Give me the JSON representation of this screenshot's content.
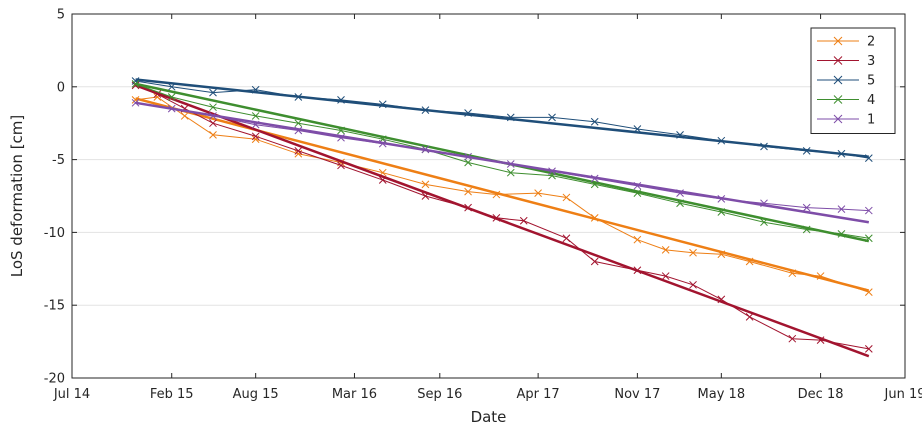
{
  "chart_data": {
    "type": "line",
    "title": "",
    "xlabel": "Date",
    "ylabel": "LoS deformation [cm]",
    "xlim": [
      "2014-07-01",
      "2019-06-01"
    ],
    "ylim": [
      -20,
      5
    ],
    "x_ticks": [
      {
        "date": "2014-07-01",
        "label": "Jul 14"
      },
      {
        "date": "2015-02-01",
        "label": "Feb 15"
      },
      {
        "date": "2015-08-01",
        "label": "Aug 15"
      },
      {
        "date": "2016-03-01",
        "label": "Mar 16"
      },
      {
        "date": "2016-09-01",
        "label": "Sep 16"
      },
      {
        "date": "2017-04-01",
        "label": "Apr 17"
      },
      {
        "date": "2017-11-01",
        "label": "Nov 17"
      },
      {
        "date": "2018-05-01",
        "label": "May 18"
      },
      {
        "date": "2018-12-01",
        "label": "Dec 18"
      },
      {
        "date": "2019-06-01",
        "label": "Jun 19"
      }
    ],
    "y_ticks": [
      5,
      0,
      -5,
      -10,
      -15,
      -20
    ],
    "grid": "horizontal",
    "legend": "top-right",
    "series": [
      {
        "name": "2",
        "color": "#EE7F15",
        "trend": [
          {
            "x": "2014-11-15",
            "y": -0.8
          },
          {
            "x": "2019-03-15",
            "y": -14.0
          }
        ],
        "points": [
          {
            "x": "2014-11-15",
            "y": -0.9
          },
          {
            "x": "2015-01-01",
            "y": -0.7
          },
          {
            "x": "2015-03-01",
            "y": -2.0
          },
          {
            "x": "2015-05-01",
            "y": -3.3
          },
          {
            "x": "2015-08-01",
            "y": -3.6
          },
          {
            "x": "2015-11-01",
            "y": -4.6
          },
          {
            "x": "2016-02-01",
            "y": -5.2
          },
          {
            "x": "2016-05-01",
            "y": -5.9
          },
          {
            "x": "2016-08-01",
            "y": -6.7
          },
          {
            "x": "2016-11-01",
            "y": -7.2
          },
          {
            "x": "2017-01-01",
            "y": -7.4
          },
          {
            "x": "2017-04-01",
            "y": -7.3
          },
          {
            "x": "2017-06-01",
            "y": -7.6
          },
          {
            "x": "2017-08-01",
            "y": -9.0
          },
          {
            "x": "2017-11-01",
            "y": -10.5
          },
          {
            "x": "2018-01-01",
            "y": -11.2
          },
          {
            "x": "2018-03-01",
            "y": -11.4
          },
          {
            "x": "2018-05-01",
            "y": -11.5
          },
          {
            "x": "2018-07-01",
            "y": -12.0
          },
          {
            "x": "2018-10-01",
            "y": -12.8
          },
          {
            "x": "2018-12-01",
            "y": -13.0
          },
          {
            "x": "2019-03-15",
            "y": -14.1
          }
        ]
      },
      {
        "name": "3",
        "color": "#A2142F",
        "trend": [
          {
            "x": "2014-11-15",
            "y": 0.1
          },
          {
            "x": "2019-03-15",
            "y": -18.5
          }
        ],
        "points": [
          {
            "x": "2014-11-15",
            "y": 0.1
          },
          {
            "x": "2015-01-01",
            "y": -0.5
          },
          {
            "x": "2015-03-01",
            "y": -1.5
          },
          {
            "x": "2015-05-01",
            "y": -2.5
          },
          {
            "x": "2015-08-01",
            "y": -3.4
          },
          {
            "x": "2015-11-01",
            "y": -4.4
          },
          {
            "x": "2016-02-01",
            "y": -5.4
          },
          {
            "x": "2016-05-01",
            "y": -6.4
          },
          {
            "x": "2016-08-01",
            "y": -7.5
          },
          {
            "x": "2016-11-01",
            "y": -8.3
          },
          {
            "x": "2017-01-01",
            "y": -9.0
          },
          {
            "x": "2017-03-01",
            "y": -9.2
          },
          {
            "x": "2017-06-01",
            "y": -10.4
          },
          {
            "x": "2017-08-01",
            "y": -12.0
          },
          {
            "x": "2017-11-01",
            "y": -12.6
          },
          {
            "x": "2018-01-01",
            "y": -13.0
          },
          {
            "x": "2018-03-01",
            "y": -13.6
          },
          {
            "x": "2018-05-01",
            "y": -14.6
          },
          {
            "x": "2018-07-01",
            "y": -15.8
          },
          {
            "x": "2018-10-01",
            "y": -17.3
          },
          {
            "x": "2018-12-01",
            "y": -17.4
          },
          {
            "x": "2019-03-15",
            "y": -18.0
          }
        ]
      },
      {
        "name": "5",
        "color": "#1F4E79",
        "trend": [
          {
            "x": "2014-11-15",
            "y": 0.5
          },
          {
            "x": "2019-03-15",
            "y": -4.8
          }
        ],
        "points": [
          {
            "x": "2014-11-15",
            "y": 0.4
          },
          {
            "x": "2015-02-01",
            "y": 0.0
          },
          {
            "x": "2015-05-01",
            "y": -0.4
          },
          {
            "x": "2015-08-01",
            "y": -0.2
          },
          {
            "x": "2015-11-01",
            "y": -0.7
          },
          {
            "x": "2016-02-01",
            "y": -0.9
          },
          {
            "x": "2016-05-01",
            "y": -1.2
          },
          {
            "x": "2016-08-01",
            "y": -1.6
          },
          {
            "x": "2016-11-01",
            "y": -1.8
          },
          {
            "x": "2017-02-01",
            "y": -2.1
          },
          {
            "x": "2017-05-01",
            "y": -2.1
          },
          {
            "x": "2017-08-01",
            "y": -2.4
          },
          {
            "x": "2017-11-01",
            "y": -2.9
          },
          {
            "x": "2018-02-01",
            "y": -3.3
          },
          {
            "x": "2018-05-01",
            "y": -3.7
          },
          {
            "x": "2018-08-01",
            "y": -4.1
          },
          {
            "x": "2018-11-01",
            "y": -4.4
          },
          {
            "x": "2019-01-15",
            "y": -4.6
          },
          {
            "x": "2019-03-15",
            "y": -4.9
          }
        ]
      },
      {
        "name": "4",
        "color": "#3E8E2F",
        "trend": [
          {
            "x": "2014-11-15",
            "y": 0.2
          },
          {
            "x": "2019-03-15",
            "y": -10.6
          }
        ],
        "points": [
          {
            "x": "2014-11-15",
            "y": 0.2
          },
          {
            "x": "2015-02-01",
            "y": -0.7
          },
          {
            "x": "2015-05-01",
            "y": -1.4
          },
          {
            "x": "2015-08-01",
            "y": -2.0
          },
          {
            "x": "2015-11-01",
            "y": -2.5
          },
          {
            "x": "2016-02-01",
            "y": -3.0
          },
          {
            "x": "2016-05-01",
            "y": -3.6
          },
          {
            "x": "2016-08-01",
            "y": -4.3
          },
          {
            "x": "2016-11-01",
            "y": -5.2
          },
          {
            "x": "2017-02-01",
            "y": -5.9
          },
          {
            "x": "2017-05-01",
            "y": -6.1
          },
          {
            "x": "2017-08-01",
            "y": -6.7
          },
          {
            "x": "2017-11-01",
            "y": -7.3
          },
          {
            "x": "2018-02-01",
            "y": -8.0
          },
          {
            "x": "2018-05-01",
            "y": -8.6
          },
          {
            "x": "2018-08-01",
            "y": -9.3
          },
          {
            "x": "2018-11-01",
            "y": -9.8
          },
          {
            "x": "2019-01-15",
            "y": -10.1
          },
          {
            "x": "2019-03-15",
            "y": -10.4
          }
        ]
      },
      {
        "name": "1",
        "color": "#7E4DA8",
        "trend": [
          {
            "x": "2014-11-15",
            "y": -1.1
          },
          {
            "x": "2019-03-15",
            "y": -9.3
          }
        ],
        "points": [
          {
            "x": "2014-11-15",
            "y": -1.1
          },
          {
            "x": "2015-02-01",
            "y": -1.5
          },
          {
            "x": "2015-05-01",
            "y": -2.0
          },
          {
            "x": "2015-08-01",
            "y": -2.6
          },
          {
            "x": "2015-11-01",
            "y": -3.0
          },
          {
            "x": "2016-02-01",
            "y": -3.5
          },
          {
            "x": "2016-05-01",
            "y": -3.9
          },
          {
            "x": "2016-08-01",
            "y": -4.3
          },
          {
            "x": "2016-11-01",
            "y": -4.8
          },
          {
            "x": "2017-02-01",
            "y": -5.3
          },
          {
            "x": "2017-05-01",
            "y": -5.8
          },
          {
            "x": "2017-08-01",
            "y": -6.3
          },
          {
            "x": "2017-11-01",
            "y": -6.8
          },
          {
            "x": "2018-02-01",
            "y": -7.3
          },
          {
            "x": "2018-05-01",
            "y": -7.7
          },
          {
            "x": "2018-08-01",
            "y": -8.0
          },
          {
            "x": "2018-11-01",
            "y": -8.3
          },
          {
            "x": "2019-01-15",
            "y": -8.4
          },
          {
            "x": "2019-03-15",
            "y": -8.5
          }
        ]
      }
    ]
  }
}
